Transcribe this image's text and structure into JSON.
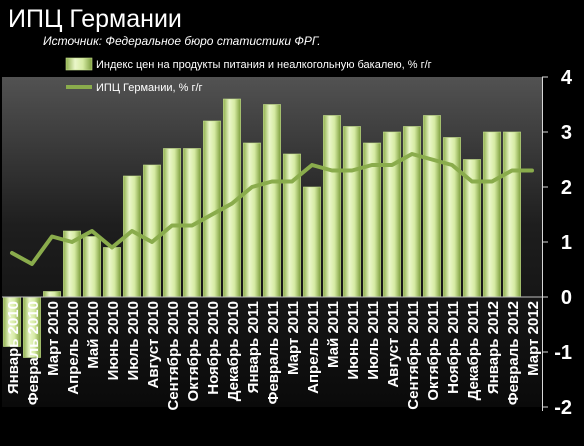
{
  "chart_data": {
    "type": "bar",
    "title": "ИПЦ Германии",
    "subtitle": "Источник: Федеральное бюро статистики ФРГ.",
    "categories": [
      "Январь 2010",
      "Февраль 2010",
      "Март 2010",
      "Апрель 2010",
      "Май 2010",
      "Июнь 2010",
      "Июль 2010",
      "Август 2010",
      "Сентябрь 2010",
      "Октябрь 2010",
      "Ноябрь 2010",
      "Декабрь 2010",
      "Январь 2011",
      "Февраль 2011",
      "Март 2011",
      "Апрель 2011",
      "Май 2011",
      "Июнь 2011",
      "Июль 2011",
      "Август 2011",
      "Сентябрь 2011",
      "Октябрь 2011",
      "Ноябрь 2011",
      "Декабрь 2011",
      "Январь 2012",
      "Февраль 2012",
      "Март 2012"
    ],
    "series": [
      {
        "name": "Индекс цен на продукты питания и неалкогольную бакалею, % г/г",
        "kind": "bar",
        "color": "#c5e08c",
        "values": [
          -0.9,
          -1.1,
          0.1,
          1.2,
          1.1,
          0.9,
          2.2,
          2.4,
          2.7,
          2.7,
          3.2,
          3.6,
          2.8,
          3.5,
          2.6,
          2.0,
          3.3,
          3.1,
          2.8,
          3.0,
          3.1,
          3.3,
          2.9,
          2.5,
          3.0,
          3.0,
          0
        ]
      },
      {
        "name": "ИПЦ Германии, % г/г",
        "kind": "line",
        "color": "#8aac4c",
        "values": [
          0.8,
          0.6,
          1.1,
          1.0,
          1.2,
          0.9,
          1.2,
          1.0,
          1.3,
          1.3,
          1.5,
          1.7,
          2.0,
          2.1,
          2.1,
          2.4,
          2.3,
          2.3,
          2.4,
          2.4,
          2.6,
          2.5,
          2.4,
          2.1,
          2.1,
          2.3,
          2.3
        ]
      }
    ],
    "ylim": [
      -2,
      4
    ],
    "yticks": [
      "-2",
      "-1",
      "0",
      "1",
      "2",
      "3",
      "4"
    ],
    "xlabel": "",
    "ylabel": "",
    "grid": false,
    "legend_position": "top-left"
  }
}
